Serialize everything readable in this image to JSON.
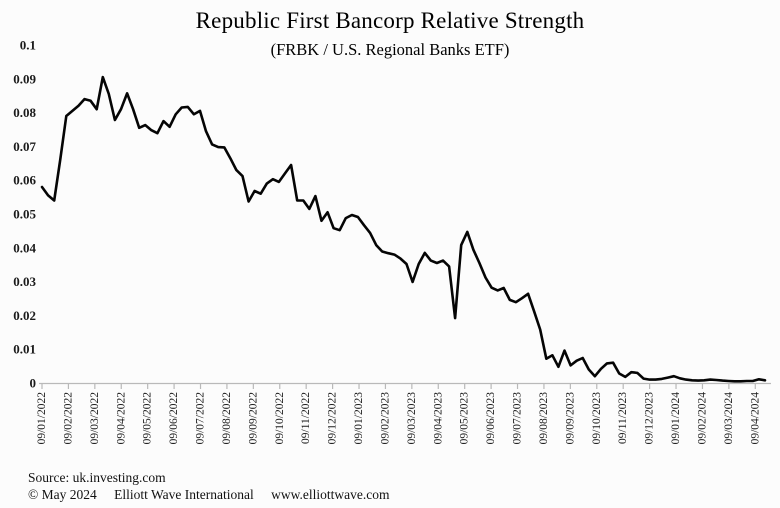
{
  "title": "Republic First Bancorp Relative Strength",
  "subtitle": "(FRBK / U.S. Regional Banks ETF)",
  "footer": {
    "source": "Source: uk.investing.com",
    "copyright": "© May 2024",
    "organization": "Elliott Wave International",
    "website": "www.elliottwave.com"
  },
  "chart_data": {
    "type": "line",
    "title": "Republic First Bancorp Relative Strength",
    "subtitle": "(FRBK / U.S. Regional Banks ETF)",
    "xlabel": "",
    "ylabel": "",
    "ylim": [
      0,
      0.1
    ],
    "grid": false,
    "legend": false,
    "line_color": "#050505",
    "axis_color": "#b9b9b9",
    "x_frequency": "weekly",
    "y_tick_labels": [
      "0.1",
      "0.09",
      "0.08",
      "0.07",
      "0.06",
      "0.05",
      "0.04",
      "0.03",
      "0.02",
      "0.01",
      "0"
    ],
    "x_tick_labels": [
      "09/01/2022",
      "09/02/2022",
      "09/03/2022",
      "09/04/2022",
      "09/05/2022",
      "09/06/2022",
      "09/07/2022",
      "09/08/2022",
      "09/09/2022",
      "09/10/2022",
      "09/11/2022",
      "09/12/2022",
      "09/01/2023",
      "09/02/2023",
      "09/03/2023",
      "09/04/2023",
      "09/05/2023",
      "09/06/2023",
      "09/07/2023",
      "09/08/2023",
      "09/09/2023",
      "09/10/2023",
      "09/11/2023",
      "09/12/2023",
      "09/01/2024",
      "09/02/2024",
      "09/03/2024",
      "09/04/2024"
    ],
    "series": [
      {
        "name": "FRBK / U.S. Regional Banks ETF relative strength",
        "values": [
          0.058,
          0.0555,
          0.054,
          0.066,
          0.079,
          0.0805,
          0.082,
          0.084,
          0.0835,
          0.081,
          0.0905,
          0.0855,
          0.0778,
          0.081,
          0.0857,
          0.081,
          0.0755,
          0.0763,
          0.0748,
          0.0739,
          0.0775,
          0.0758,
          0.0795,
          0.0815,
          0.0817,
          0.0795,
          0.0805,
          0.0745,
          0.0706,
          0.0698,
          0.0697,
          0.0665,
          0.063,
          0.0612,
          0.0537,
          0.0568,
          0.056,
          0.059,
          0.0603,
          0.0595,
          0.062,
          0.0645,
          0.054,
          0.054,
          0.0515,
          0.0553,
          0.048,
          0.0505,
          0.0458,
          0.0452,
          0.0488,
          0.0497,
          0.0491,
          0.0467,
          0.0444,
          0.0408,
          0.0389,
          0.0384,
          0.038,
          0.0368,
          0.0352,
          0.0299,
          0.0352,
          0.0385,
          0.0362,
          0.0355,
          0.0362,
          0.0345,
          0.0192,
          0.0408,
          0.0447,
          0.0394,
          0.0355,
          0.0312,
          0.0282,
          0.0274,
          0.0281,
          0.0246,
          0.0239,
          0.0251,
          0.0264,
          0.0212,
          0.0158,
          0.0072,
          0.0082,
          0.0048,
          0.0096,
          0.0052,
          0.0066,
          0.0074,
          0.004,
          0.002,
          0.0042,
          0.0058,
          0.006,
          0.0028,
          0.0018,
          0.0032,
          0.003,
          0.0013,
          0.001,
          0.001,
          0.0012,
          0.0016,
          0.002,
          0.0014,
          0.001,
          0.0008,
          0.0007,
          0.0008,
          0.001,
          0.0009,
          0.0007,
          0.0006,
          0.0005,
          0.0005,
          0.0006,
          0.0006,
          0.0011,
          0.0008
        ]
      }
    ]
  }
}
